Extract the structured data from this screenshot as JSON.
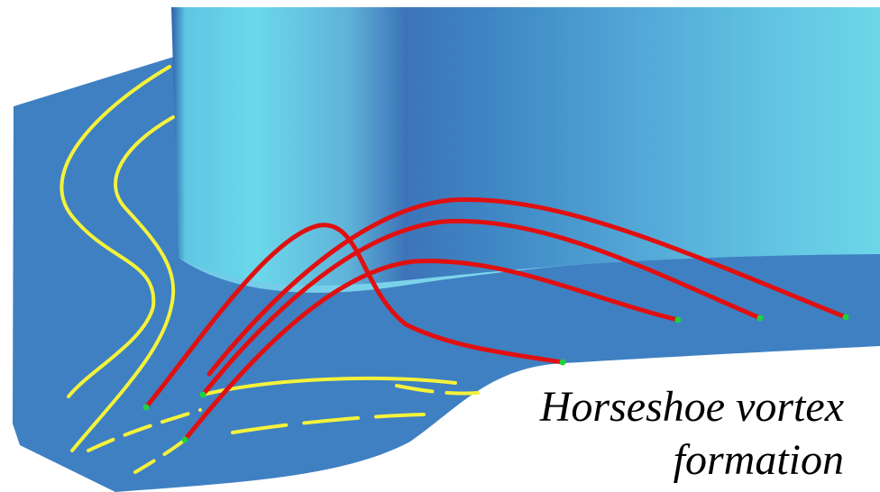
{
  "caption": {
    "line1": "Horseshoe vortex",
    "line2": "formation"
  },
  "colors": {
    "background": "#ffffff",
    "floor": "#3f80c2",
    "cylinder_light": "#6cd7e8",
    "cylinder_dark": "#3d74b9",
    "cylinder_base": "#7fd6ec",
    "streamline_red": "#e01010",
    "streamline_yellow": "#f5f23a",
    "marker_green": "#20d040",
    "caption_text": "#000000"
  }
}
